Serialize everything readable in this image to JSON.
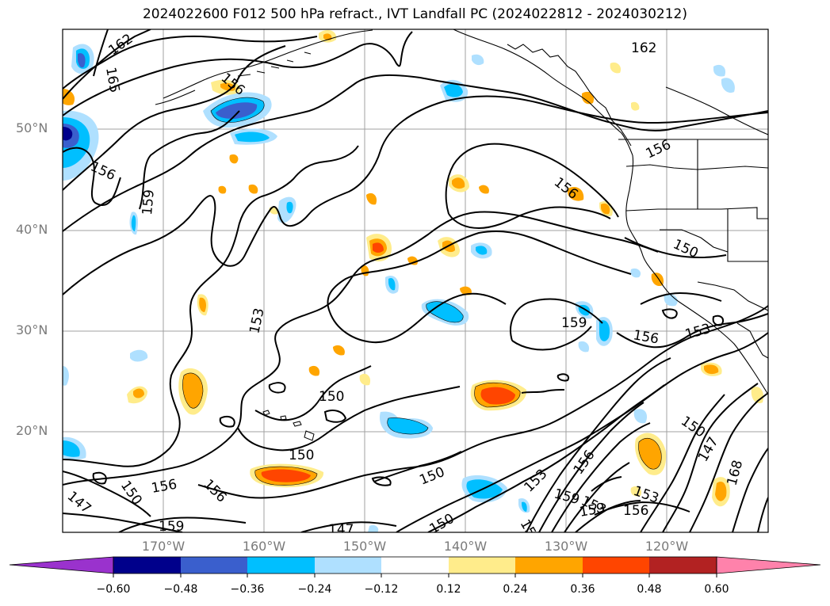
{
  "title": "2024022600 F012 500 hPa refract., IVT Landfall PC (2024022812 - 2024030212)",
  "latitude_labels": [
    "50°N",
    "40°N",
    "30°N",
    "20°N"
  ],
  "longitude_labels": [
    "170°W",
    "160°W",
    "150°W",
    "140°W",
    "130°W",
    "120°W"
  ],
  "contour_labels": [
    "162",
    "165",
    "156",
    "156",
    "159",
    "153",
    "150",
    "150",
    "156",
    "156",
    "150",
    "147",
    "159",
    "150",
    "147",
    "150",
    "159",
    "153",
    "159",
    "159",
    "156",
    "153",
    "156",
    "153",
    "150",
    "147",
    "168",
    "162",
    "156",
    "156",
    "159",
    "156",
    "153"
  ],
  "colorbar": {
    "tick_labels": [
      "−0.60",
      "−0.48",
      "−0.36",
      "−0.24",
      "−0.12",
      "0.12",
      "0.24",
      "0.36",
      "0.48",
      "0.60"
    ],
    "colors": [
      "#9a32cd",
      "#00008b",
      "#3a5fcd",
      "#00bfff",
      "#afe0ff",
      "#ffffff",
      "#ffec8b",
      "#ffa500",
      "#ff4500",
      "#b22222",
      "#ff82ab"
    ]
  },
  "chart_data": {
    "type": "heatmap",
    "title": "2024022600 F012 500 hPa refract., IVT Landfall PC (2024022812 - 2024030212)",
    "contour_levels_shown": [
      147,
      150,
      153,
      156,
      159,
      162,
      165,
      168
    ],
    "shaded_levels": [
      -0.6,
      -0.48,
      -0.36,
      -0.24,
      -0.12,
      0.12,
      0.24,
      0.36,
      0.48,
      0.6
    ],
    "xlim": [
      -180,
      -110
    ],
    "ylim": [
      10,
      60
    ],
    "grid": true
  }
}
